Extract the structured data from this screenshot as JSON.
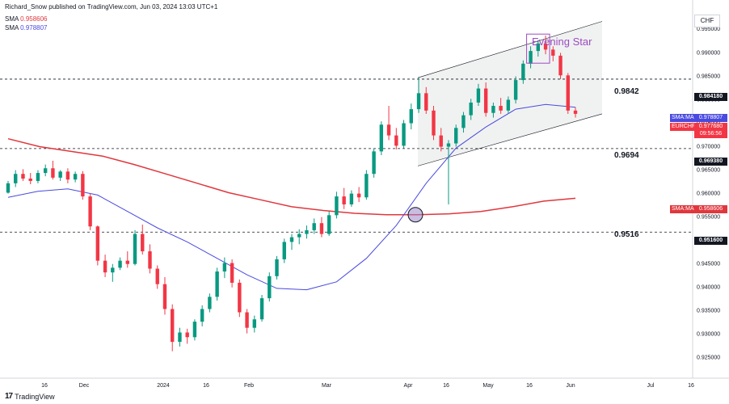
{
  "header": {
    "published": "Richard_Snow published on TradingView.com, Jun 03, 2024 13:03 UTC+1",
    "sma1_label": "SMA",
    "sma1_value": "0.958606",
    "sma1_color": "#e0373d",
    "sma2_label": "SMA",
    "sma2_value": "0.978807",
    "sma2_color": "#4a4adf"
  },
  "footer": {
    "brand": "TradingView",
    "logo": "17"
  },
  "currency_button": "CHF",
  "colors": {
    "up": "#089981",
    "down": "#f23645",
    "sma200": "#e0373d",
    "sma50": "#4a4adf",
    "channel_fill": "#f0f2f1",
    "annotation": "#9c4bc0"
  },
  "chart_data": {
    "type": "candlestick",
    "symbol": "EURCHF",
    "x_ticks": [
      "16",
      "Dec",
      "2024",
      "16",
      "Feb",
      "Mar",
      "Apr",
      "16",
      "May",
      "16",
      "Jun",
      "Jul",
      "16"
    ],
    "y_ticks": [
      "0.995000",
      "0.990000",
      "0.985000",
      "0.980000",
      "0.975000",
      "0.970000",
      "0.965000",
      "0.960000",
      "0.955000",
      "0.950000",
      "0.945000",
      "0.940000",
      "0.935000",
      "0.930000",
      "0.925000"
    ],
    "ylim": [
      0.9215,
      0.999
    ],
    "horizontal_levels": [
      {
        "value": 0.9842,
        "label": "0.9842",
        "tag": "0.984180"
      },
      {
        "value": 0.9694,
        "label": "0.9694",
        "tag": "0.969380"
      },
      {
        "value": 0.9516,
        "label": "0.9516",
        "tag": "0.951600"
      }
    ],
    "price_tags": [
      {
        "label": "SMA:MA",
        "value": "0.978807",
        "color": "#4a4adf"
      },
      {
        "label": "EURCHF",
        "value": "0.977680",
        "sub": "09:56:56",
        "color": "#f23645"
      },
      {
        "label": "SMA:MA",
        "value": "0.958606",
        "color": "#e0373d"
      }
    ],
    "annotation": "Evening Star",
    "sma200": [
      [
        0.9715,
        0.9698,
        0.9688,
        0.9678,
        0.966,
        0.964,
        0.962,
        0.96,
        0.9585,
        0.957,
        0.9562,
        0.9556,
        0.9553,
        0.9553,
        0.9555,
        0.956,
        0.957,
        0.9582,
        0.9588
      ]
    ],
    "sma50": [
      [
        0.959,
        0.9603,
        0.9608,
        0.9595,
        0.956,
        0.9525,
        0.9495,
        0.946,
        0.9425,
        0.9396,
        0.9393,
        0.941,
        0.946,
        0.953,
        0.962,
        0.9695,
        0.974,
        0.9778,
        0.9788,
        0.9782
      ]
    ],
    "candles": [
      [
        0.96,
        0.9625,
        0.9598,
        0.962
      ],
      [
        0.962,
        0.9648,
        0.9612,
        0.964
      ],
      [
        0.964,
        0.965,
        0.9625,
        0.963
      ],
      [
        0.963,
        0.9642,
        0.9618,
        0.9625
      ],
      [
        0.9625,
        0.9648,
        0.962,
        0.9642
      ],
      [
        0.9642,
        0.966,
        0.9635,
        0.9652
      ],
      [
        0.9652,
        0.9668,
        0.9628,
        0.9632
      ],
      [
        0.9632,
        0.9648,
        0.9625,
        0.9645
      ],
      [
        0.9645,
        0.9652,
        0.962,
        0.9628
      ],
      [
        0.9628,
        0.9645,
        0.9622,
        0.964
      ],
      [
        0.964,
        0.9646,
        0.9585,
        0.9592
      ],
      [
        0.9592,
        0.9598,
        0.952,
        0.9528
      ],
      [
        0.9528,
        0.953,
        0.9445,
        0.9455
      ],
      [
        0.9455,
        0.9468,
        0.942,
        0.943
      ],
      [
        0.943,
        0.9448,
        0.941,
        0.944
      ],
      [
        0.944,
        0.9462,
        0.9435,
        0.9455
      ],
      [
        0.9455,
        0.9475,
        0.944,
        0.9448
      ],
      [
        0.9448,
        0.952,
        0.9445,
        0.9512
      ],
      [
        0.9512,
        0.9532,
        0.9468,
        0.9475
      ],
      [
        0.9475,
        0.949,
        0.9428,
        0.9438
      ],
      [
        0.9438,
        0.9445,
        0.9395,
        0.9405
      ],
      [
        0.9405,
        0.942,
        0.934,
        0.9352
      ],
      [
        0.9352,
        0.9362,
        0.9262,
        0.9282
      ],
      [
        0.9282,
        0.9312,
        0.9272,
        0.9302
      ],
      [
        0.9302,
        0.931,
        0.9278,
        0.9292
      ],
      [
        0.9292,
        0.933,
        0.9285,
        0.9325
      ],
      [
        0.9325,
        0.936,
        0.9315,
        0.9352
      ],
      [
        0.9352,
        0.9385,
        0.9345,
        0.9378
      ],
      [
        0.9378,
        0.944,
        0.937,
        0.9432
      ],
      [
        0.9432,
        0.9462,
        0.9418,
        0.945
      ],
      [
        0.945,
        0.9458,
        0.9398,
        0.9408
      ],
      [
        0.9408,
        0.9415,
        0.9335,
        0.9345
      ],
      [
        0.9345,
        0.9352,
        0.93,
        0.9312
      ],
      [
        0.9312,
        0.9338,
        0.9302,
        0.933
      ],
      [
        0.933,
        0.9382,
        0.9325,
        0.9375
      ],
      [
        0.9375,
        0.943,
        0.9368,
        0.9422
      ],
      [
        0.9422,
        0.9465,
        0.9415,
        0.9458
      ],
      [
        0.9458,
        0.9502,
        0.945,
        0.9495
      ],
      [
        0.9495,
        0.9512,
        0.9478,
        0.9505
      ],
      [
        0.9505,
        0.9522,
        0.949,
        0.9512
      ],
      [
        0.9512,
        0.953,
        0.9502,
        0.952
      ],
      [
        0.952,
        0.9545,
        0.9512,
        0.9535
      ],
      [
        0.9535,
        0.9548,
        0.9505,
        0.9512
      ],
      [
        0.9512,
        0.956,
        0.9508,
        0.9552
      ],
      [
        0.9552,
        0.9602,
        0.9545,
        0.9592
      ],
      [
        0.9592,
        0.961,
        0.9565,
        0.9575
      ],
      [
        0.9575,
        0.9605,
        0.957,
        0.9598
      ],
      [
        0.9598,
        0.9612,
        0.958,
        0.959
      ],
      [
        0.959,
        0.9648,
        0.9585,
        0.964
      ],
      [
        0.964,
        0.9695,
        0.9632,
        0.9688
      ],
      [
        0.9688,
        0.9752,
        0.968,
        0.9745
      ],
      [
        0.9745,
        0.9785,
        0.9712,
        0.9722
      ],
      [
        0.9722,
        0.9738,
        0.9692,
        0.97
      ],
      [
        0.97,
        0.9755,
        0.9695,
        0.9748
      ],
      [
        0.9748,
        0.979,
        0.9735,
        0.9778
      ],
      [
        0.9778,
        0.9845,
        0.977,
        0.9812
      ],
      [
        0.9812,
        0.9825,
        0.9768,
        0.9775
      ],
      [
        0.9775,
        0.9785,
        0.9712,
        0.9722
      ],
      [
        0.9722,
        0.9738,
        0.9688,
        0.9698
      ],
      [
        0.9698,
        0.9712,
        0.9575,
        0.9705
      ],
      [
        0.9705,
        0.9745,
        0.9698,
        0.9738
      ],
      [
        0.9738,
        0.9772,
        0.9728,
        0.9765
      ],
      [
        0.9765,
        0.98,
        0.9755,
        0.9792
      ],
      [
        0.9792,
        0.9832,
        0.9785,
        0.9822
      ],
      [
        0.9822,
        0.9835,
        0.9762,
        0.977
      ],
      [
        0.977,
        0.9792,
        0.976,
        0.9785
      ],
      [
        0.9785,
        0.9802,
        0.9768,
        0.9775
      ],
      [
        0.9775,
        0.9805,
        0.977,
        0.9798
      ],
      [
        0.9798,
        0.9848,
        0.979,
        0.984
      ],
      [
        0.984,
        0.9882,
        0.9832,
        0.9875
      ],
      [
        0.9875,
        0.9912,
        0.9865,
        0.9902
      ],
      [
        0.9902,
        0.9925,
        0.989,
        0.9918
      ],
      [
        0.9918,
        0.9935,
        0.9895,
        0.9905
      ],
      [
        0.9905,
        0.9912,
        0.988,
        0.9892
      ],
      [
        0.9892,
        0.9898,
        0.9842,
        0.985
      ],
      [
        0.985,
        0.9855,
        0.9768,
        0.9775
      ],
      [
        0.9775,
        0.9782,
        0.976,
        0.9768
      ]
    ],
    "channel": {
      "upper": [
        0.9845,
        0.9965
      ],
      "lower": [
        0.9657,
        0.9768
      ]
    }
  }
}
